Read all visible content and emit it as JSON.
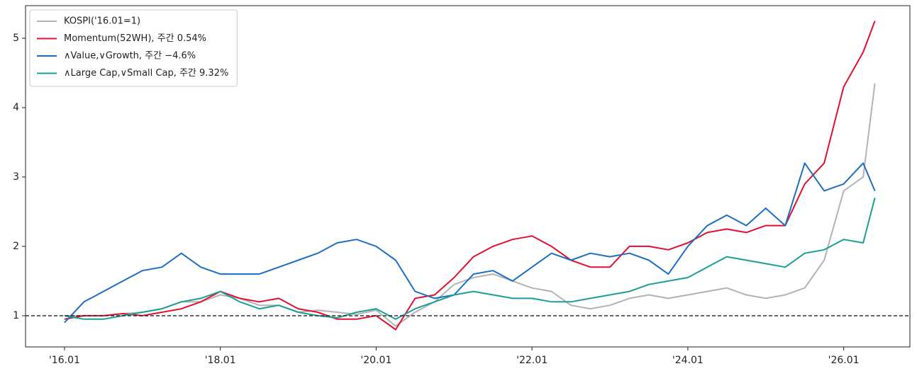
{
  "chart_data": {
    "type": "line",
    "x": [
      2016.0,
      2016.25,
      2016.5,
      2016.75,
      2017.0,
      2017.25,
      2017.5,
      2017.75,
      2018.0,
      2018.25,
      2018.5,
      2018.75,
      2019.0,
      2019.25,
      2019.5,
      2019.75,
      2020.0,
      2020.25,
      2020.5,
      2020.75,
      2021.0,
      2021.25,
      2021.5,
      2021.75,
      2022.0,
      2022.25,
      2022.5,
      2022.75,
      2023.0,
      2023.25,
      2023.5,
      2023.75,
      2024.0,
      2024.25,
      2024.5,
      2024.75,
      2025.0,
      2025.25,
      2025.5,
      2025.75,
      2026.0,
      2026.25,
      2026.4
    ],
    "series": [
      {
        "name": "KOSPI('16.01=1)",
        "color": "#b3b3b3",
        "values": [
          1.0,
          1.0,
          1.0,
          1.03,
          1.05,
          1.1,
          1.2,
          1.2,
          1.3,
          1.25,
          1.15,
          1.15,
          1.05,
          1.08,
          1.05,
          1.02,
          1.08,
          0.85,
          1.05,
          1.2,
          1.45,
          1.55,
          1.6,
          1.5,
          1.4,
          1.35,
          1.15,
          1.1,
          1.15,
          1.25,
          1.3,
          1.25,
          1.3,
          1.35,
          1.4,
          1.3,
          1.25,
          1.3,
          1.4,
          1.8,
          2.8,
          3.0,
          4.35
        ]
      },
      {
        "name": "Momentum(52WH), 주간 0.54%",
        "color": "#e0102f",
        "values": [
          0.95,
          1.0,
          1.0,
          1.03,
          1.0,
          1.05,
          1.1,
          1.2,
          1.35,
          1.25,
          1.2,
          1.25,
          1.1,
          1.05,
          0.95,
          0.95,
          1.0,
          0.8,
          1.25,
          1.3,
          1.55,
          1.85,
          2.0,
          2.1,
          2.15,
          2.0,
          1.8,
          1.7,
          1.7,
          2.0,
          2.0,
          1.95,
          2.05,
          2.2,
          2.25,
          2.2,
          2.3,
          2.3,
          2.9,
          3.2,
          4.3,
          4.8,
          5.25
        ]
      },
      {
        "name": "∧Value,∨Growth, 주간 −4.6%",
        "color": "#1a6fc4",
        "values": [
          0.9,
          1.2,
          1.35,
          1.5,
          1.65,
          1.7,
          1.9,
          1.7,
          1.6,
          1.6,
          1.6,
          1.7,
          1.8,
          1.9,
          2.05,
          2.1,
          2.0,
          1.8,
          1.35,
          1.25,
          1.3,
          1.6,
          1.65,
          1.5,
          1.7,
          1.9,
          1.8,
          1.9,
          1.85,
          1.9,
          1.8,
          1.6,
          2.0,
          2.3,
          2.45,
          2.3,
          2.55,
          2.3,
          3.2,
          2.8,
          2.9,
          3.2,
          2.8
        ]
      },
      {
        "name": "∧Large Cap,∨Small Cap, 주간 9.32%",
        "color": "#1a9e96",
        "values": [
          1.0,
          0.95,
          0.95,
          1.0,
          1.05,
          1.1,
          1.2,
          1.25,
          1.35,
          1.2,
          1.1,
          1.15,
          1.05,
          1.0,
          0.97,
          1.05,
          1.1,
          0.95,
          1.1,
          1.2,
          1.3,
          1.35,
          1.3,
          1.25,
          1.25,
          1.2,
          1.2,
          1.25,
          1.3,
          1.35,
          1.45,
          1.5,
          1.55,
          1.7,
          1.85,
          1.8,
          1.75,
          1.7,
          1.9,
          1.95,
          2.1,
          2.05,
          2.7
        ]
      }
    ],
    "xlim": [
      2015.5,
      2026.85
    ],
    "ylim": [
      0.55,
      5.47
    ],
    "xticks": [
      {
        "value": 2016,
        "label": "'16.01"
      },
      {
        "value": 2018,
        "label": "'18.01"
      },
      {
        "value": 2020,
        "label": "'20.01"
      },
      {
        "value": 2022,
        "label": "'22.01"
      },
      {
        "value": 2024,
        "label": "'24.01"
      },
      {
        "value": 2026,
        "label": "'26.01"
      }
    ],
    "yticks": [
      1,
      2,
      3,
      4,
      5
    ],
    "hline": 1,
    "legend": "upper-left"
  }
}
